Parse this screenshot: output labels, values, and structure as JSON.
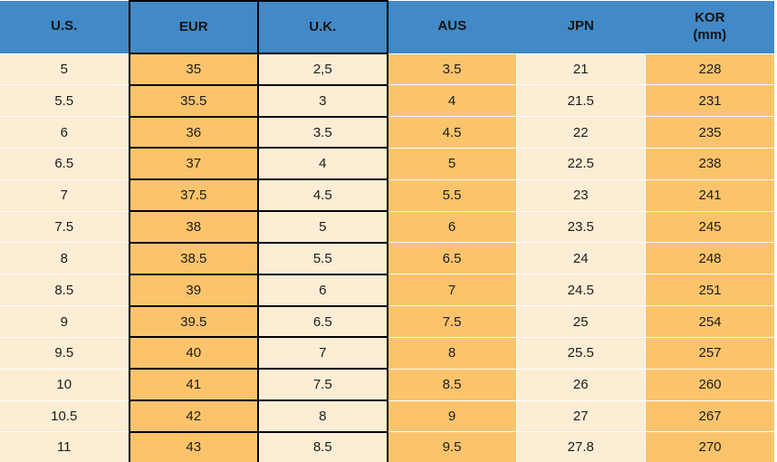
{
  "chart_data": {
    "type": "table",
    "columns": [
      "U.S.",
      "EUR",
      "U.K.",
      "AUS",
      "JPN",
      "KOR (mm)"
    ],
    "rows": [
      [
        "5",
        "35",
        "2,5",
        "3.5",
        "21",
        "228"
      ],
      [
        "5.5",
        "35.5",
        "3",
        "4",
        "21.5",
        "231"
      ],
      [
        "6",
        "36",
        "3.5",
        "4.5",
        "22",
        "235"
      ],
      [
        "6.5",
        "37",
        "4",
        "5",
        "22.5",
        "238"
      ],
      [
        "7",
        "37.5",
        "4.5",
        "5.5",
        "23",
        "241"
      ],
      [
        "7.5",
        "38",
        "5",
        "6",
        "23.5",
        "245"
      ],
      [
        "8",
        "38.5",
        "5.5",
        "6.5",
        "24",
        "248"
      ],
      [
        "8.5",
        "39",
        "6",
        "7",
        "24.5",
        "251"
      ],
      [
        "9",
        "39.5",
        "6.5",
        "7.5",
        "25",
        "254"
      ],
      [
        "9.5",
        "40",
        "7",
        "8",
        "25.5",
        "257"
      ],
      [
        "10",
        "41",
        "7.5",
        "8.5",
        "26",
        "260"
      ],
      [
        "10.5",
        "42",
        "8",
        "9",
        "27",
        "267"
      ],
      [
        "11",
        "43",
        "8.5",
        "9.5",
        "27.8",
        "270"
      ]
    ]
  },
  "header_kor": {
    "line1": "KOR",
    "line2": "(mm)"
  },
  "colors": {
    "header_blue": "#4189C7",
    "orange": "#FBC46C",
    "cream": "#FCEDD5",
    "border_black": "#000000",
    "separator_white": "#FFFFFF"
  }
}
